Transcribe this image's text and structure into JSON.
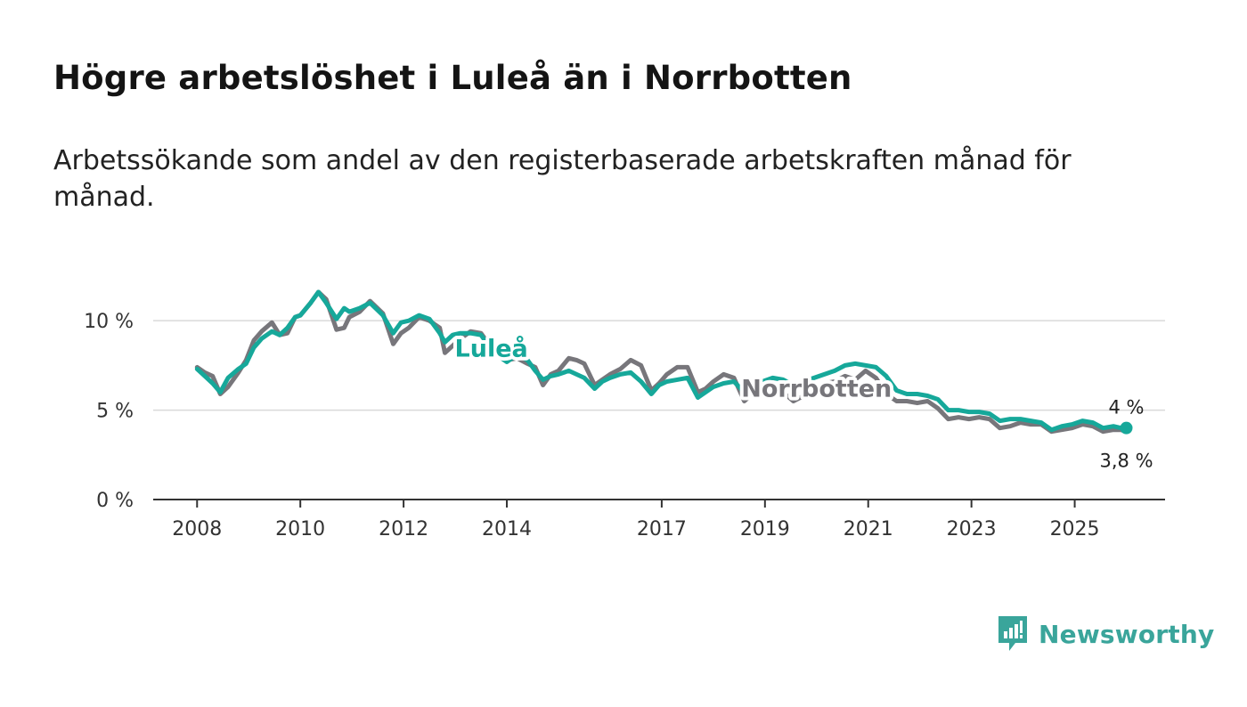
{
  "title": "Högre arbetslöshet i Luleå än i Norrbotten",
  "subtitle": "Arbetssökande som andel av den registerbaserade arbetskraften månad för månad.",
  "brand": {
    "name": "Newsworthy"
  },
  "colors": {
    "lulea": "#16a89a",
    "norrbotten": "#77767b",
    "grid": "#d9d9d9",
    "axis": "#333333",
    "brand": "#3aa59b"
  },
  "chart_data": {
    "type": "line",
    "title": "Högre arbetslöshet i Luleå än i Norrbotten",
    "subtitle": "Arbetssökande som andel av den registerbaserade arbetskraften månad för månad.",
    "xlabel": "",
    "ylabel": "",
    "x_range": [
      2007.15,
      2026.75
    ],
    "ylim": [
      0,
      12
    ],
    "yticks": [
      0,
      5,
      10
    ],
    "ytick_labels": [
      "0 %",
      "5 %",
      "10 %"
    ],
    "xticks": [
      2008,
      2010,
      2012,
      2014,
      2017,
      2019,
      2021,
      2023,
      2025
    ],
    "xtick_labels": [
      "2008",
      "2010",
      "2012",
      "2014",
      "2017",
      "2019",
      "2021",
      "2023",
      "2025"
    ],
    "grid": true,
    "legend": "inline labels",
    "series": [
      {
        "name": "Norrbotten",
        "color": "#77767b",
        "end_label": "3,8 %",
        "points": [
          [
            2008.0,
            7.4
          ],
          [
            2008.15,
            7.1
          ],
          [
            2008.3,
            6.9
          ],
          [
            2008.45,
            5.9
          ],
          [
            2008.6,
            6.3
          ],
          [
            2008.8,
            7.1
          ],
          [
            2008.95,
            7.8
          ],
          [
            2009.1,
            8.9
          ],
          [
            2009.25,
            9.4
          ],
          [
            2009.45,
            9.9
          ],
          [
            2009.6,
            9.2
          ],
          [
            2009.75,
            9.3
          ],
          [
            2009.9,
            10.2
          ],
          [
            2010.0,
            10.3
          ],
          [
            2010.2,
            11.0
          ],
          [
            2010.35,
            11.6
          ],
          [
            2010.5,
            11.2
          ],
          [
            2010.7,
            9.5
          ],
          [
            2010.85,
            9.6
          ],
          [
            2010.95,
            10.2
          ],
          [
            2011.15,
            10.5
          ],
          [
            2011.35,
            11.1
          ],
          [
            2011.6,
            10.4
          ],
          [
            2011.8,
            8.7
          ],
          [
            2011.95,
            9.3
          ],
          [
            2012.1,
            9.6
          ],
          [
            2012.3,
            10.2
          ],
          [
            2012.5,
            10.0
          ],
          [
            2012.7,
            9.6
          ],
          [
            2012.8,
            8.2
          ],
          [
            2012.95,
            8.6
          ],
          [
            2013.1,
            9.0
          ],
          [
            2013.3,
            9.4
          ],
          [
            2013.5,
            9.3
          ],
          [
            2013.6,
            8.9
          ],
          [
            2013.8,
            8.4
          ],
          [
            2014.0,
            7.8
          ],
          [
            2014.2,
            7.9
          ],
          [
            2014.4,
            7.6
          ],
          [
            2014.55,
            7.4
          ],
          [
            2014.7,
            6.4
          ],
          [
            2014.85,
            7.0
          ],
          [
            2015.0,
            7.2
          ],
          [
            2015.2,
            7.9
          ],
          [
            2015.35,
            7.8
          ],
          [
            2015.5,
            7.6
          ],
          [
            2015.7,
            6.4
          ],
          [
            2015.85,
            6.7
          ],
          [
            2016.0,
            7.0
          ],
          [
            2016.2,
            7.3
          ],
          [
            2016.4,
            7.8
          ],
          [
            2016.6,
            7.5
          ],
          [
            2016.8,
            6.1
          ],
          [
            2016.95,
            6.5
          ],
          [
            2017.1,
            7.0
          ],
          [
            2017.3,
            7.4
          ],
          [
            2017.5,
            7.4
          ],
          [
            2017.7,
            6.0
          ],
          [
            2017.85,
            6.2
          ],
          [
            2018.0,
            6.6
          ],
          [
            2018.2,
            7.0
          ],
          [
            2018.4,
            6.8
          ],
          [
            2018.6,
            5.5
          ],
          [
            2018.75,
            5.9
          ],
          [
            2018.95,
            6.2
          ],
          [
            2019.15,
            6.3
          ],
          [
            2019.35,
            6.0
          ],
          [
            2019.55,
            5.5
          ],
          [
            2019.75,
            5.8
          ],
          [
            2019.95,
            6.1
          ],
          [
            2020.15,
            6.5
          ],
          [
            2020.35,
            6.6
          ],
          [
            2020.55,
            6.9
          ],
          [
            2020.75,
            6.7
          ],
          [
            2020.95,
            7.2
          ],
          [
            2021.15,
            6.8
          ],
          [
            2021.35,
            5.9
          ],
          [
            2021.55,
            5.5
          ],
          [
            2021.75,
            5.5
          ],
          [
            2021.95,
            5.4
          ],
          [
            2022.15,
            5.5
          ],
          [
            2022.35,
            5.1
          ],
          [
            2022.55,
            4.5
          ],
          [
            2022.75,
            4.6
          ],
          [
            2022.95,
            4.5
          ],
          [
            2023.15,
            4.6
          ],
          [
            2023.35,
            4.5
          ],
          [
            2023.55,
            4.0
          ],
          [
            2023.75,
            4.1
          ],
          [
            2023.95,
            4.3
          ],
          [
            2024.15,
            4.2
          ],
          [
            2024.35,
            4.2
          ],
          [
            2024.55,
            3.8
          ],
          [
            2024.75,
            3.9
          ],
          [
            2024.95,
            4.0
          ],
          [
            2025.15,
            4.2
          ],
          [
            2025.35,
            4.1
          ],
          [
            2025.55,
            3.8
          ],
          [
            2025.75,
            3.9
          ],
          [
            2025.9,
            3.9
          ],
          [
            2026.0,
            3.8
          ]
        ]
      },
      {
        "name": "Luleå",
        "color": "#16a89a",
        "end_label": "4 %",
        "points": [
          [
            2008.0,
            7.3
          ],
          [
            2008.15,
            6.9
          ],
          [
            2008.3,
            6.5
          ],
          [
            2008.45,
            6.0
          ],
          [
            2008.6,
            6.8
          ],
          [
            2008.8,
            7.3
          ],
          [
            2008.95,
            7.6
          ],
          [
            2009.1,
            8.5
          ],
          [
            2009.25,
            9.0
          ],
          [
            2009.45,
            9.4
          ],
          [
            2009.6,
            9.2
          ],
          [
            2009.75,
            9.6
          ],
          [
            2009.9,
            10.2
          ],
          [
            2010.0,
            10.3
          ],
          [
            2010.2,
            11.0
          ],
          [
            2010.35,
            11.6
          ],
          [
            2010.5,
            11.0
          ],
          [
            2010.7,
            10.1
          ],
          [
            2010.85,
            10.7
          ],
          [
            2010.95,
            10.5
          ],
          [
            2011.15,
            10.7
          ],
          [
            2011.35,
            11.0
          ],
          [
            2011.6,
            10.3
          ],
          [
            2011.8,
            9.3
          ],
          [
            2011.95,
            9.9
          ],
          [
            2012.1,
            10.0
          ],
          [
            2012.3,
            10.3
          ],
          [
            2012.5,
            10.1
          ],
          [
            2012.7,
            9.3
          ],
          [
            2012.8,
            8.8
          ],
          [
            2012.95,
            9.2
          ],
          [
            2013.1,
            9.3
          ],
          [
            2013.3,
            9.3
          ],
          [
            2013.5,
            9.2
          ],
          [
            2013.6,
            8.8
          ],
          [
            2013.8,
            8.1
          ],
          [
            2014.0,
            7.7
          ],
          [
            2014.2,
            8.1
          ],
          [
            2014.4,
            7.8
          ],
          [
            2014.55,
            7.2
          ],
          [
            2014.7,
            6.7
          ],
          [
            2014.85,
            6.9
          ],
          [
            2015.0,
            7.0
          ],
          [
            2015.2,
            7.2
          ],
          [
            2015.35,
            7.0
          ],
          [
            2015.5,
            6.8
          ],
          [
            2015.7,
            6.2
          ],
          [
            2015.85,
            6.6
          ],
          [
            2016.0,
            6.8
          ],
          [
            2016.2,
            7.0
          ],
          [
            2016.4,
            7.1
          ],
          [
            2016.6,
            6.6
          ],
          [
            2016.8,
            5.9
          ],
          [
            2016.95,
            6.4
          ],
          [
            2017.1,
            6.6
          ],
          [
            2017.3,
            6.7
          ],
          [
            2017.5,
            6.8
          ],
          [
            2017.7,
            5.7
          ],
          [
            2017.85,
            6.0
          ],
          [
            2018.0,
            6.3
          ],
          [
            2018.2,
            6.5
          ],
          [
            2018.4,
            6.6
          ],
          [
            2018.6,
            6.0
          ],
          [
            2018.75,
            6.3
          ],
          [
            2018.95,
            6.6
          ],
          [
            2019.15,
            6.8
          ],
          [
            2019.35,
            6.7
          ],
          [
            2019.55,
            6.4
          ],
          [
            2019.75,
            6.6
          ],
          [
            2019.95,
            6.8
          ],
          [
            2020.15,
            7.0
          ],
          [
            2020.35,
            7.2
          ],
          [
            2020.55,
            7.5
          ],
          [
            2020.75,
            7.6
          ],
          [
            2020.95,
            7.5
          ],
          [
            2021.15,
            7.4
          ],
          [
            2021.35,
            6.9
          ],
          [
            2021.55,
            6.1
          ],
          [
            2021.75,
            5.9
          ],
          [
            2021.95,
            5.9
          ],
          [
            2022.15,
            5.8
          ],
          [
            2022.35,
            5.6
          ],
          [
            2022.55,
            5.0
          ],
          [
            2022.75,
            5.0
          ],
          [
            2022.95,
            4.9
          ],
          [
            2023.15,
            4.9
          ],
          [
            2023.35,
            4.8
          ],
          [
            2023.55,
            4.4
          ],
          [
            2023.75,
            4.5
          ],
          [
            2023.95,
            4.5
          ],
          [
            2024.15,
            4.4
          ],
          [
            2024.35,
            4.3
          ],
          [
            2024.55,
            3.9
          ],
          [
            2024.75,
            4.1
          ],
          [
            2024.95,
            4.2
          ],
          [
            2025.15,
            4.4
          ],
          [
            2025.35,
            4.3
          ],
          [
            2025.55,
            4.0
          ],
          [
            2025.75,
            4.1
          ],
          [
            2025.9,
            4.0
          ],
          [
            2026.0,
            4.0
          ]
        ]
      }
    ],
    "annotations": [
      {
        "text": "Luleå",
        "series": "Luleå",
        "at_x": 2013.7
      },
      {
        "text": "Norrbotten",
        "series": "Norrbotten",
        "at_x": 2020.0
      }
    ]
  }
}
